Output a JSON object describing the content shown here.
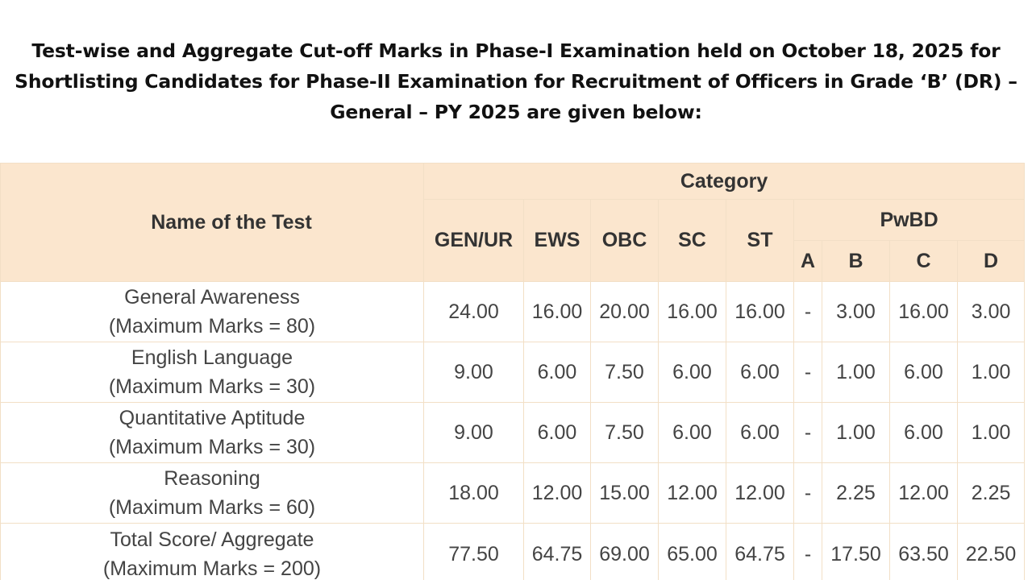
{
  "title": {
    "line1": "Test-wise and Aggregate Cut-off Marks in Phase-I Examination held on October 18, 2025 for",
    "line2": "Shortlisting Candidates for Phase-II Examination for Recruitment of Officers in Grade ‘B’ (DR) –",
    "line3": "General – PY 2025 are given below:"
  },
  "table": {
    "name_header": "Name of the Test",
    "category_header": "Category",
    "columns": [
      "GEN/UR",
      "EWS",
      "OBC",
      "SC",
      "ST"
    ],
    "pwbd_header": "PwBD",
    "pwbd_columns": [
      "A",
      "B",
      "C",
      "D"
    ],
    "rows": [
      {
        "name": "General Awareness",
        "max": "(Maximum Marks = 80)",
        "values": [
          "24.00",
          "16.00",
          "20.00",
          "16.00",
          "16.00",
          "-",
          "3.00",
          "16.00",
          "3.00"
        ]
      },
      {
        "name": "English Language",
        "max": "(Maximum Marks = 30)",
        "values": [
          "9.00",
          "6.00",
          "7.50",
          "6.00",
          "6.00",
          "-",
          "1.00",
          "6.00",
          "1.00"
        ]
      },
      {
        "name": "Quantitative Aptitude",
        "max": "(Maximum Marks = 30)",
        "values": [
          "9.00",
          "6.00",
          "7.50",
          "6.00",
          "6.00",
          "-",
          "1.00",
          "6.00",
          "1.00"
        ]
      },
      {
        "name": "Reasoning",
        "max": "(Maximum Marks = 60)",
        "values": [
          "18.00",
          "12.00",
          "15.00",
          "12.00",
          "12.00",
          "-",
          "2.25",
          "12.00",
          "2.25"
        ]
      },
      {
        "name": "Total Score/ Aggregate",
        "max": "(Maximum Marks = 200)",
        "values": [
          "77.50",
          "64.75",
          "69.00",
          "65.00",
          "64.75",
          "-",
          "17.50",
          "63.50",
          "22.50"
        ]
      }
    ]
  }
}
